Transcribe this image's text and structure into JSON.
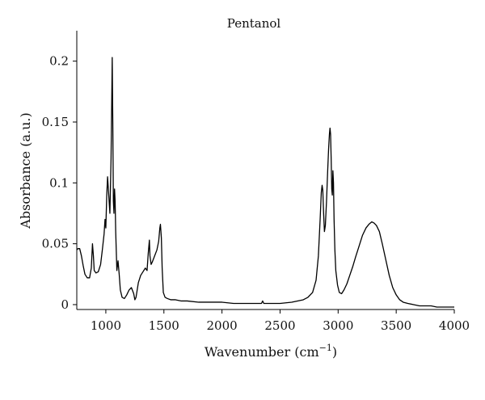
{
  "chart_data": {
    "type": "line",
    "title": "Pentanol",
    "xlabel": "Wavenumber (cm",
    "xlabel_sup": "−1",
    "xlabel_suffix": ")",
    "ylabel": "Absorbance (a.u.)",
    "xlim": [
      750,
      4000
    ],
    "ylim": [
      -0.004,
      0.225
    ],
    "x_ticks": [
      1000,
      1500,
      2000,
      2500,
      3000,
      3500,
      4000
    ],
    "x_tick_labels": [
      "1000",
      "1500",
      "2000",
      "2500",
      "3000",
      "3500",
      "4000"
    ],
    "y_ticks": [
      0,
      0.05,
      0.1,
      0.15,
      0.2
    ],
    "y_tick_labels": [
      "0",
      "0.05",
      "0.1",
      "0.15",
      "0.2"
    ],
    "grid": false,
    "line_color": "#000000",
    "series": [
      {
        "x": [
          750,
          760,
          775,
          790,
          805,
          820,
          840,
          860,
          875,
          885,
          893,
          900,
          915,
          935,
          955,
          970,
          985,
          993,
          1000,
          1008,
          1015,
          1025,
          1035,
          1045,
          1050,
          1055,
          1060,
          1065,
          1070,
          1075,
          1080,
          1085,
          1095,
          1105,
          1115,
          1125,
          1140,
          1160,
          1180,
          1200,
          1220,
          1240,
          1250,
          1260,
          1270,
          1280,
          1300,
          1320,
          1340,
          1355,
          1365,
          1375,
          1380,
          1390,
          1400,
          1420,
          1440,
          1455,
          1465,
          1470,
          1478,
          1485,
          1495,
          1510,
          1530,
          1560,
          1600,
          1650,
          1700,
          1800,
          1900,
          2000,
          2100,
          2200,
          2300,
          2340,
          2350,
          2360,
          2400,
          2500,
          2600,
          2650,
          2700,
          2740,
          2780,
          2810,
          2830,
          2845,
          2855,
          2862,
          2868,
          2875,
          2882,
          2890,
          2900,
          2910,
          2918,
          2925,
          2930,
          2935,
          2940,
          2945,
          2950,
          2955,
          2960,
          2965,
          2972,
          2980,
          2995,
          3010,
          3030,
          3050,
          3075,
          3100,
          3125,
          3150,
          3180,
          3210,
          3240,
          3265,
          3290,
          3310,
          3330,
          3355,
          3380,
          3410,
          3440,
          3470,
          3500,
          3530,
          3560,
          3600,
          3650,
          3700,
          3750,
          3800,
          3850,
          3900,
          3950,
          4000
        ],
        "y": [
          0.045,
          0.046,
          0.046,
          0.04,
          0.032,
          0.025,
          0.022,
          0.022,
          0.03,
          0.05,
          0.04,
          0.028,
          0.026,
          0.027,
          0.033,
          0.045,
          0.058,
          0.07,
          0.063,
          0.09,
          0.105,
          0.09,
          0.075,
          0.12,
          0.16,
          0.203,
          0.15,
          0.085,
          0.075,
          0.095,
          0.085,
          0.06,
          0.028,
          0.036,
          0.025,
          0.012,
          0.006,
          0.005,
          0.008,
          0.012,
          0.014,
          0.009,
          0.004,
          0.006,
          0.012,
          0.018,
          0.024,
          0.027,
          0.03,
          0.028,
          0.042,
          0.053,
          0.04,
          0.033,
          0.035,
          0.04,
          0.045,
          0.052,
          0.063,
          0.066,
          0.055,
          0.03,
          0.01,
          0.006,
          0.005,
          0.004,
          0.004,
          0.003,
          0.003,
          0.002,
          0.002,
          0.002,
          0.001,
          0.001,
          0.001,
          0.001,
          0.003,
          0.001,
          0.001,
          0.001,
          0.002,
          0.003,
          0.004,
          0.006,
          0.01,
          0.02,
          0.04,
          0.07,
          0.092,
          0.098,
          0.094,
          0.075,
          0.06,
          0.065,
          0.085,
          0.11,
          0.128,
          0.14,
          0.145,
          0.14,
          0.12,
          0.095,
          0.09,
          0.11,
          0.1,
          0.07,
          0.045,
          0.028,
          0.016,
          0.01,
          0.009,
          0.012,
          0.017,
          0.024,
          0.031,
          0.039,
          0.048,
          0.057,
          0.063,
          0.066,
          0.068,
          0.067,
          0.065,
          0.06,
          0.05,
          0.037,
          0.024,
          0.014,
          0.008,
          0.004,
          0.002,
          0.001,
          0.0,
          -0.001,
          -0.001,
          -0.001,
          -0.002,
          -0.002,
          -0.002,
          -0.002
        ]
      }
    ]
  }
}
